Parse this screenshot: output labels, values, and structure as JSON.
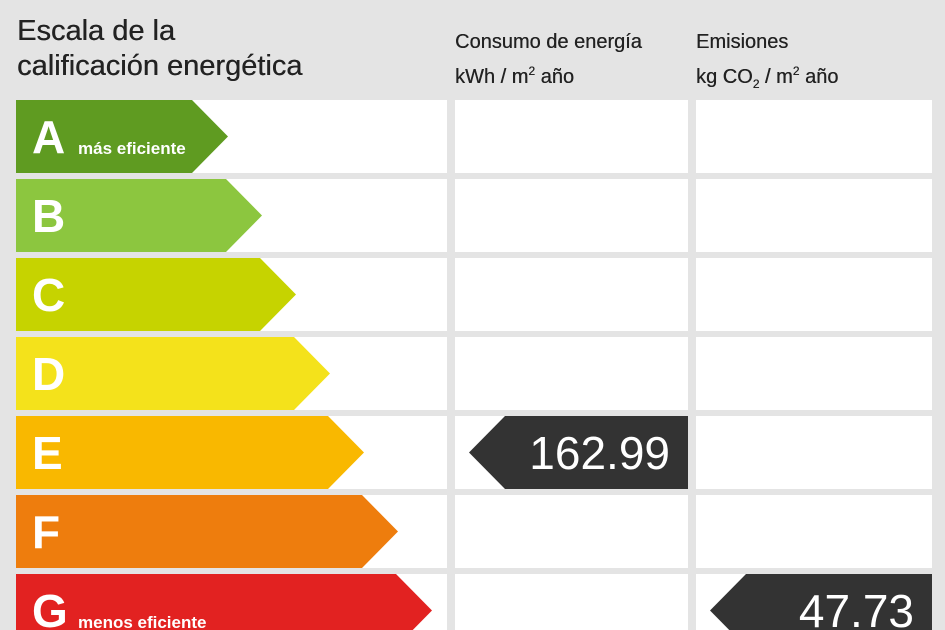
{
  "header": {
    "title_line1": "Escala de la",
    "title_line2": "calificación energética",
    "consumo_line1": "Consumo de energía",
    "consumo_line2_pre": "kWh / m",
    "consumo_line2_sup": "2",
    "consumo_line2_post": " año",
    "emisiones_line1": "Emisiones",
    "emisiones_line2_pre": "kg CO",
    "emisiones_line2_sub": "2",
    "emisiones_line2_mid": " / m",
    "emisiones_line2_sup": "2",
    "emisiones_line2_post": " año"
  },
  "ratings": [
    {
      "letter": "A",
      "label": "más eficiente",
      "color": "#5f9b21"
    },
    {
      "letter": "B",
      "label": "",
      "color": "#8cc63f"
    },
    {
      "letter": "C",
      "label": "",
      "color": "#c6d300"
    },
    {
      "letter": "D",
      "label": "",
      "color": "#f4e21b"
    },
    {
      "letter": "E",
      "label": "",
      "color": "#f9b800"
    },
    {
      "letter": "F",
      "label": "",
      "color": "#ee7d0d"
    },
    {
      "letter": "G",
      "label": "menos eficiente",
      "color": "#e22221"
    }
  ],
  "consumo": {
    "value": "162.99",
    "rating": "E"
  },
  "emisiones": {
    "value": "47.73",
    "rating": "G"
  },
  "colors": {
    "background": "#e4e4e4",
    "cell": "#ffffff",
    "pointer": "#333333"
  }
}
